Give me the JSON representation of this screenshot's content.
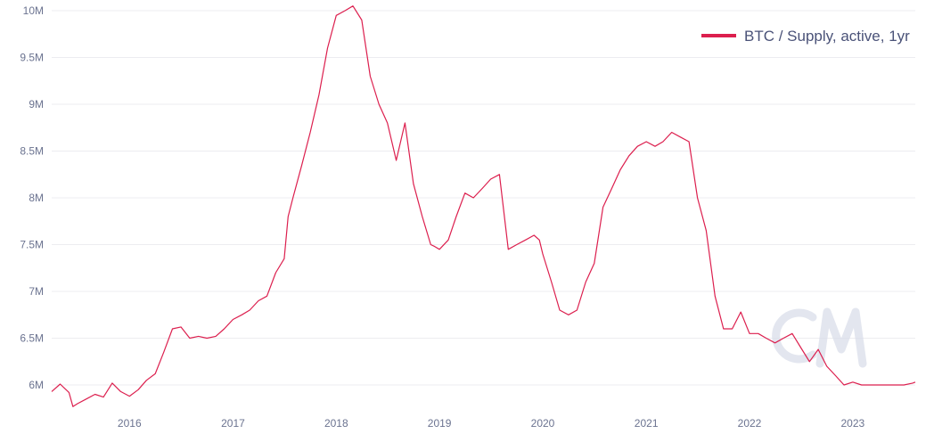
{
  "chart_data": {
    "type": "line",
    "title": "",
    "xlabel": "",
    "ylabel": "",
    "ylim": [
      5.8,
      10.1
    ],
    "xlim": [
      "2015-04-01",
      "2023-08-10"
    ],
    "grid": "horizontal",
    "legend_position": "top-right",
    "x_tick_labels": [
      "2016",
      "2017",
      "2018",
      "2019",
      "2020",
      "2021",
      "2022",
      "2023"
    ],
    "y_tick_labels": [
      "6M",
      "6.5M",
      "7M",
      "7.5M",
      "8M",
      "8.5M",
      "9M",
      "9.5M",
      "10M"
    ],
    "y_unit": "M",
    "series": [
      {
        "name": "BTC / Supply, active, 1yr",
        "color": "#dc1f4e",
        "x": [
          "2015-04-01",
          "2015-05-01",
          "2015-06-01",
          "2015-06-15",
          "2015-07-01",
          "2015-08-01",
          "2015-09-01",
          "2015-10-01",
          "2015-11-01",
          "2015-12-01",
          "2016-01-01",
          "2016-02-01",
          "2016-03-01",
          "2016-04-01",
          "2016-05-01",
          "2016-06-01",
          "2016-07-01",
          "2016-08-01",
          "2016-09-01",
          "2016-10-01",
          "2016-11-01",
          "2016-12-01",
          "2017-01-01",
          "2017-02-01",
          "2017-03-01",
          "2017-04-01",
          "2017-05-01",
          "2017-06-01",
          "2017-07-01",
          "2017-07-15",
          "2017-08-01",
          "2017-09-01",
          "2017-10-01",
          "2017-11-01",
          "2017-12-01",
          "2018-01-01",
          "2018-02-01",
          "2018-03-01",
          "2018-04-01",
          "2018-05-01",
          "2018-06-01",
          "2018-07-01",
          "2018-08-01",
          "2018-09-01",
          "2018-10-01",
          "2018-11-01",
          "2018-12-01",
          "2018-12-15",
          "2019-01-01",
          "2019-02-01",
          "2019-03-01",
          "2019-04-01",
          "2019-05-01",
          "2019-06-01",
          "2019-07-01",
          "2019-08-01",
          "2019-09-01",
          "2019-10-01",
          "2019-11-01",
          "2019-12-01",
          "2019-12-20",
          "2020-01-01",
          "2020-02-01",
          "2020-03-01",
          "2020-04-01",
          "2020-05-01",
          "2020-06-01",
          "2020-07-01",
          "2020-08-01",
          "2020-09-01",
          "2020-10-01",
          "2020-11-01",
          "2020-12-01",
          "2021-01-01",
          "2021-02-01",
          "2021-03-01",
          "2021-04-01",
          "2021-05-01",
          "2021-06-01",
          "2021-07-01",
          "2021-08-01",
          "2021-09-01",
          "2021-10-01",
          "2021-11-01",
          "2021-12-01",
          "2022-01-01",
          "2022-02-01",
          "2022-03-01",
          "2022-04-01",
          "2022-05-01",
          "2022-06-01",
          "2022-07-01",
          "2022-08-01",
          "2022-09-01",
          "2022-10-01",
          "2022-11-01",
          "2022-12-01",
          "2023-01-01",
          "2023-02-01",
          "2023-03-01",
          "2023-04-01",
          "2023-05-01",
          "2023-06-01",
          "2023-07-01",
          "2023-08-01",
          "2023-08-10"
        ],
        "values": [
          5.93,
          6.01,
          5.92,
          5.77,
          5.8,
          5.85,
          5.9,
          5.87,
          6.02,
          5.93,
          5.88,
          5.95,
          6.05,
          6.12,
          6.35,
          6.6,
          6.62,
          6.5,
          6.52,
          6.5,
          6.52,
          6.6,
          6.7,
          6.75,
          6.8,
          6.9,
          6.95,
          7.2,
          7.35,
          7.8,
          8.0,
          8.35,
          8.7,
          9.1,
          9.6,
          9.95,
          10.0,
          10.05,
          9.9,
          9.3,
          9.0,
          8.8,
          8.4,
          8.8,
          8.15,
          7.8,
          7.5,
          7.48,
          7.45,
          7.55,
          7.8,
          8.05,
          8.0,
          8.1,
          8.2,
          8.25,
          7.45,
          7.5,
          7.55,
          7.6,
          7.55,
          7.4,
          7.1,
          6.8,
          6.75,
          6.8,
          7.1,
          7.3,
          7.9,
          8.1,
          8.3,
          8.45,
          8.55,
          8.6,
          8.55,
          8.6,
          8.7,
          8.65,
          8.6,
          8.0,
          7.65,
          6.95,
          6.6,
          6.6,
          6.78,
          6.55,
          6.55,
          6.5,
          6.45,
          6.5,
          6.55,
          6.4,
          6.25,
          6.38,
          6.2,
          6.1,
          6.0,
          6.03,
          6.0,
          6.0,
          6.0,
          6.0,
          6.0,
          6.0,
          6.02,
          6.03
        ]
      }
    ]
  },
  "watermark": {
    "text": "CM"
  }
}
